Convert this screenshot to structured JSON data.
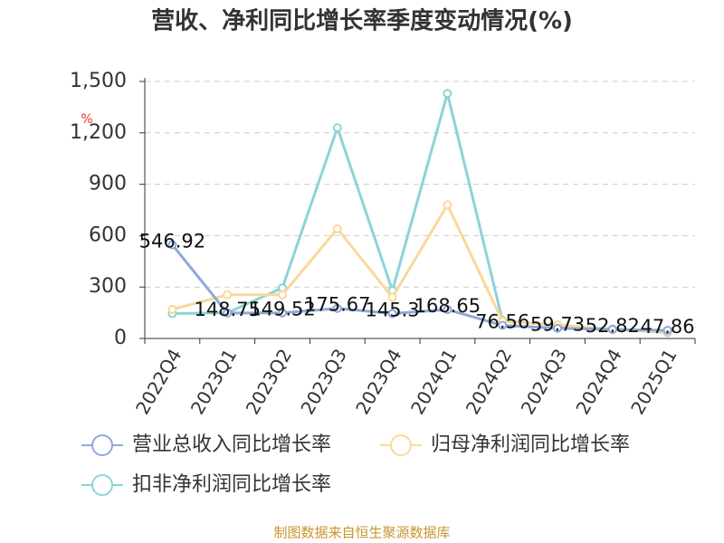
{
  "chart_data": {
    "type": "line",
    "title": "营收、净利同比增长率季度变动情况(%)",
    "y_unit": "%",
    "categories": [
      "2022Q4",
      "2023Q1",
      "2023Q2",
      "2023Q3",
      "2023Q4",
      "2024Q1",
      "2024Q2",
      "2024Q3",
      "2024Q4",
      "2025Q1"
    ],
    "series": [
      {
        "name": "营业总收入同比增长率",
        "color": "#8fa8d8",
        "values": [
          546.92,
          148.75,
          149.52,
          175.67,
          145.3,
          168.65,
          76.56,
          59.73,
          52.82,
          47.86
        ],
        "show_labels": true
      },
      {
        "name": "归母净利润同比增长率",
        "color": "#f9d89a",
        "values": [
          170,
          255,
          255,
          640,
          240,
          780,
          100,
          80,
          50,
          40
        ],
        "show_labels": false
      },
      {
        "name": "扣非净利润同比增长率",
        "color": "#8dd3d8",
        "values": [
          145,
          150,
          295,
          1230,
          280,
          1430,
          105,
          75,
          55,
          35
        ],
        "show_labels": false
      }
    ],
    "ylim": [
      0,
      1500
    ],
    "yticks": [
      0,
      300,
      600,
      900,
      {
        "value": 1200,
        "label": "1,200"
      },
      {
        "value": 1500,
        "label": "1,500"
      }
    ],
    "grid": true,
    "legend": "bottom",
    "source": "制图数据来自恒生聚源数据库"
  }
}
